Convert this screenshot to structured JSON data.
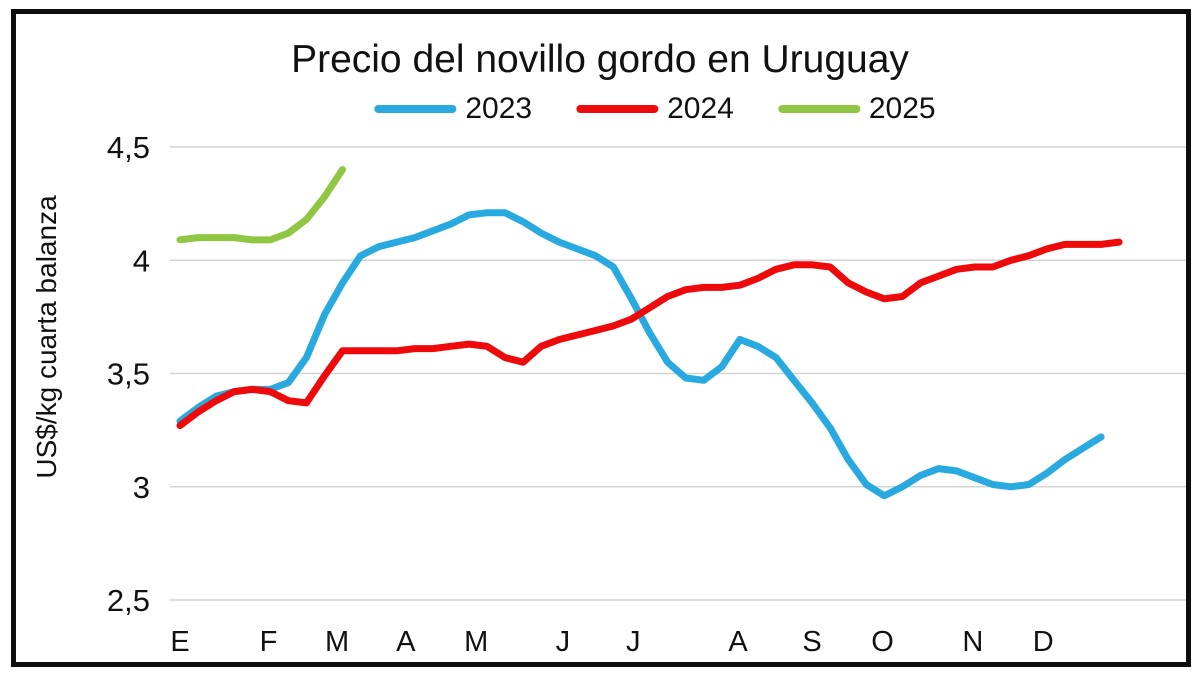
{
  "figure": {
    "title": "Precio del novillo gordo en Uruguay",
    "y_axis_title": "US$/kg cuarta balanza"
  },
  "legend": {
    "items": [
      {
        "label": "2023",
        "color": "#28A9E0"
      },
      {
        "label": "2024",
        "color": "#EE0A0A"
      },
      {
        "label": "2025",
        "color": "#8FC742"
      }
    ]
  },
  "chart_data": {
    "type": "line",
    "title": "Precio del novillo gordo en Uruguay",
    "xlabel": "",
    "ylabel": "US$/kg cuarta balanza",
    "ylim": [
      2.5,
      4.5
    ],
    "grid": "horizontal-only",
    "grid_color": "#d4d4d4",
    "legend_position": "top-center",
    "x_unit": "week-of-year",
    "y_ticks": [
      {
        "value": 4.5,
        "label": "4,5"
      },
      {
        "value": 4.0,
        "label": "4"
      },
      {
        "value": 3.5,
        "label": "3,5"
      },
      {
        "value": 3.0,
        "label": "3"
      },
      {
        "value": 2.5,
        "label": "2,5"
      }
    ],
    "x_ticks": [
      {
        "label": "E",
        "week": 0
      },
      {
        "label": "F",
        "week": 4.9
      },
      {
        "label": "M",
        "week": 8.7
      },
      {
        "label": "A",
        "week": 12.5
      },
      {
        "label": "M",
        "week": 16.4
      },
      {
        "label": "J",
        "week": 21.2
      },
      {
        "label": "J",
        "week": 25.1
      },
      {
        "label": "A",
        "week": 30.9
      },
      {
        "label": "S",
        "week": 35.0
      },
      {
        "label": "O",
        "week": 38.9
      },
      {
        "label": "N",
        "week": 43.9
      },
      {
        "label": "D",
        "week": 47.8
      }
    ],
    "series": [
      {
        "name": "2023",
        "color": "#28A9E0",
        "start_week": 0,
        "values": [
          3.29,
          3.35,
          3.4,
          3.42,
          3.43,
          3.43,
          3.46,
          3.57,
          3.76,
          3.9,
          4.02,
          4.06,
          4.08,
          4.1,
          4.13,
          4.16,
          4.2,
          4.21,
          4.21,
          4.17,
          4.12,
          4.08,
          4.05,
          4.02,
          3.97,
          3.83,
          3.68,
          3.55,
          3.48,
          3.47,
          3.53,
          3.65,
          3.62,
          3.57,
          3.47,
          3.37,
          3.26,
          3.12,
          3.01,
          2.96,
          3.0,
          3.05,
          3.08,
          3.07,
          3.04,
          3.01,
          3.0,
          3.01,
          3.06,
          3.12,
          3.17,
          3.22
        ]
      },
      {
        "name": "2024",
        "color": "#EE0A0A",
        "start_week": 0,
        "values": [
          3.27,
          3.33,
          3.38,
          3.42,
          3.43,
          3.42,
          3.38,
          3.37,
          3.49,
          3.6,
          3.6,
          3.6,
          3.6,
          3.61,
          3.61,
          3.62,
          3.63,
          3.62,
          3.57,
          3.55,
          3.62,
          3.65,
          3.67,
          3.69,
          3.71,
          3.74,
          3.79,
          3.84,
          3.87,
          3.88,
          3.88,
          3.89,
          3.92,
          3.96,
          3.98,
          3.98,
          3.97,
          3.9,
          3.86,
          3.83,
          3.84,
          3.9,
          3.93,
          3.96,
          3.97,
          3.97,
          4.0,
          4.02,
          4.05,
          4.07,
          4.07,
          4.07,
          4.08
        ]
      },
      {
        "name": "2025",
        "color": "#8FC742",
        "start_week": 0,
        "values": [
          4.09,
          4.1,
          4.1,
          4.1,
          4.09,
          4.09,
          4.12,
          4.18,
          4.28,
          4.4
        ]
      }
    ]
  }
}
